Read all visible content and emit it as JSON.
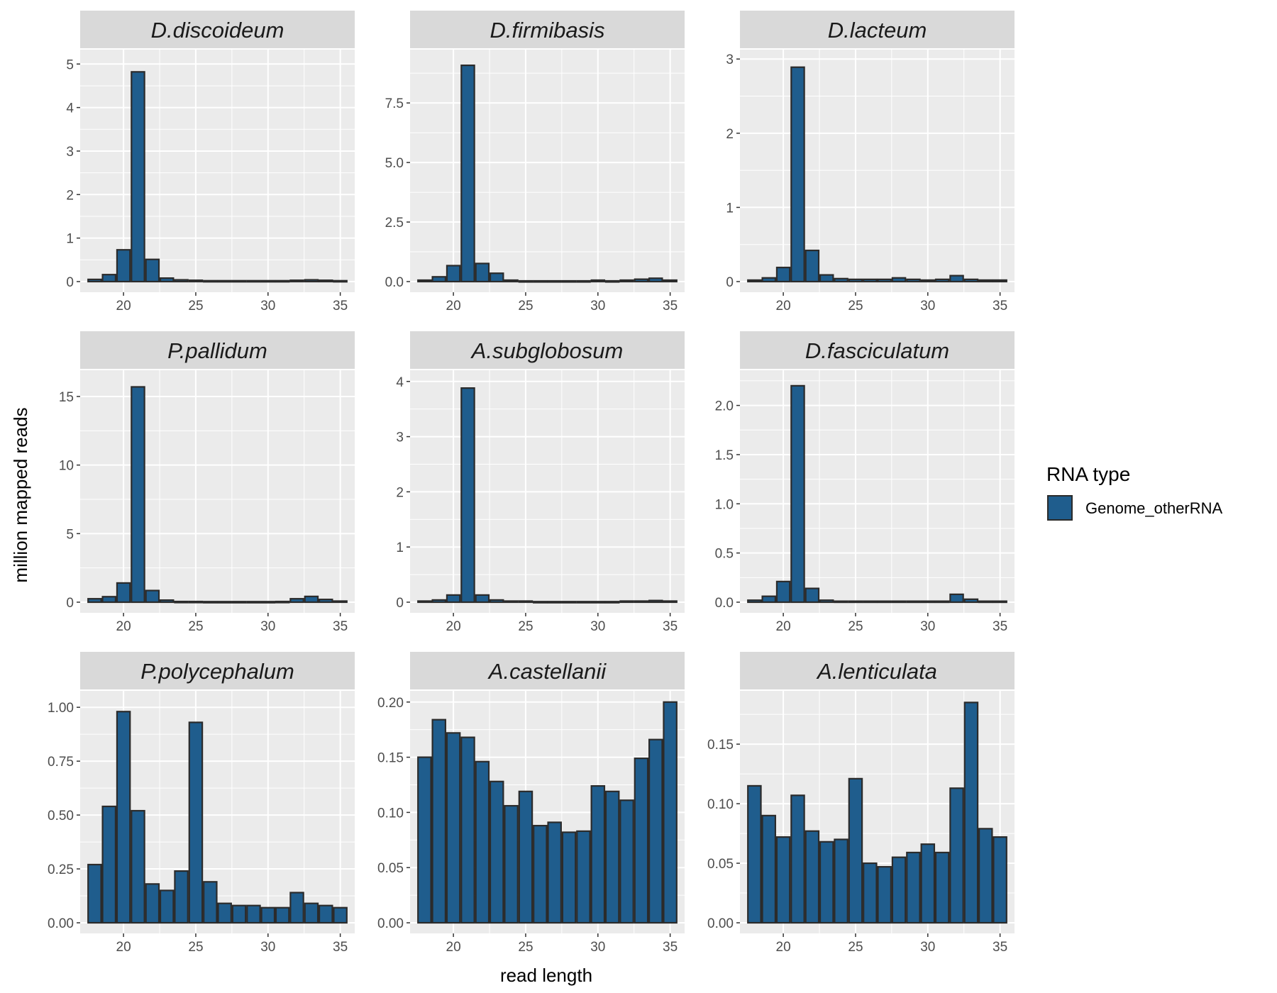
{
  "chart_data": {
    "type": "bar",
    "facet_layout": "3x3",
    "xlabel": "read length",
    "ylabel": "million mapped reads",
    "x": [
      18,
      19,
      20,
      21,
      22,
      23,
      24,
      25,
      26,
      27,
      28,
      29,
      30,
      31,
      32,
      33,
      34,
      35
    ],
    "x_ticks": [
      20,
      25,
      30,
      35
    ],
    "xlim": [
      17,
      36
    ],
    "grid": true,
    "legend": {
      "title": "RNA type",
      "position": "right",
      "entries": [
        {
          "label": "Genome_otherRNA",
          "color": "#1f5d8d"
        }
      ]
    },
    "colors": {
      "bar_fill": "#1f5d8d",
      "bar_outline": "#2b2b2b",
      "panel_bg": "#ebebeb",
      "strip_bg": "#d9d9d9",
      "grid": "#ffffff"
    },
    "panels": [
      {
        "title": "D.discoideum",
        "ylim": [
          0,
          5.2
        ],
        "y_ticks": [
          0,
          1,
          2,
          3,
          4,
          5
        ],
        "y_tick_labels": [
          "0",
          "1",
          "2",
          "3",
          "4",
          "5"
        ],
        "values": [
          0.05,
          0.16,
          0.73,
          4.82,
          0.51,
          0.08,
          0.04,
          0.03,
          0.02,
          0.02,
          0.02,
          0.02,
          0.02,
          0.02,
          0.03,
          0.04,
          0.03,
          0.02
        ]
      },
      {
        "title": "D.firmibasis",
        "ylim": [
          0,
          9.5
        ],
        "y_ticks": [
          0,
          2.5,
          5,
          7.5
        ],
        "y_tick_labels": [
          "0.0",
          "2.5",
          "5.0",
          "7.5"
        ],
        "values": [
          0.06,
          0.2,
          0.67,
          9.08,
          0.76,
          0.35,
          0.06,
          0.03,
          0.03,
          0.03,
          0.03,
          0.03,
          0.06,
          0.03,
          0.06,
          0.1,
          0.14,
          0.06
        ]
      },
      {
        "title": "D.lacteum",
        "ylim": [
          0,
          3.05
        ],
        "y_ticks": [
          0,
          1,
          2,
          3
        ],
        "y_tick_labels": [
          "0",
          "1",
          "2",
          "3"
        ],
        "values": [
          0.02,
          0.05,
          0.19,
          2.89,
          0.42,
          0.09,
          0.04,
          0.03,
          0.03,
          0.03,
          0.05,
          0.03,
          0.02,
          0.03,
          0.08,
          0.03,
          0.02,
          0.02
        ]
      },
      {
        "title": "P.pallidum",
        "ylim": [
          0,
          16.5
        ],
        "y_ticks": [
          0,
          5,
          10,
          15
        ],
        "y_tick_labels": [
          "0",
          "5",
          "10",
          "15"
        ],
        "values": [
          0.25,
          0.4,
          1.4,
          15.7,
          0.85,
          0.15,
          0.05,
          0.05,
          0.04,
          0.04,
          0.04,
          0.04,
          0.04,
          0.05,
          0.25,
          0.42,
          0.2,
          0.08
        ]
      },
      {
        "title": "A.subglobosum",
        "ylim": [
          0,
          4.1
        ],
        "y_ticks": [
          0,
          1,
          2,
          3,
          4
        ],
        "y_tick_labels": [
          "0",
          "1",
          "2",
          "3",
          "4"
        ],
        "values": [
          0.02,
          0.04,
          0.13,
          3.88,
          0.13,
          0.04,
          0.02,
          0.02,
          0.01,
          0.01,
          0.01,
          0.01,
          0.01,
          0.01,
          0.02,
          0.02,
          0.03,
          0.02
        ]
      },
      {
        "title": "D.fasciculatum",
        "ylim": [
          0,
          2.3
        ],
        "y_ticks": [
          0,
          0.5,
          1,
          1.5,
          2
        ],
        "y_tick_labels": [
          "0.0",
          "0.5",
          "1.0",
          "1.5",
          "2.0"
        ],
        "values": [
          0.02,
          0.06,
          0.21,
          2.2,
          0.14,
          0.02,
          0.01,
          0.01,
          0.01,
          0.01,
          0.01,
          0.01,
          0.01,
          0.01,
          0.08,
          0.03,
          0.01,
          0.01
        ]
      },
      {
        "title": "P.polycephalum",
        "ylim": [
          0,
          1.05
        ],
        "y_ticks": [
          0,
          0.25,
          0.5,
          0.75,
          1
        ],
        "y_tick_labels": [
          "0.00",
          "0.25",
          "0.50",
          "0.75",
          "1.00"
        ],
        "values": [
          0.27,
          0.54,
          0.98,
          0.52,
          0.18,
          0.15,
          0.24,
          0.93,
          0.19,
          0.09,
          0.08,
          0.08,
          0.07,
          0.07,
          0.14,
          0.09,
          0.08,
          0.07
        ]
      },
      {
        "title": "A.castellanii",
        "ylim": [
          0,
          0.205
        ],
        "y_ticks": [
          0,
          0.05,
          0.1,
          0.15,
          0.2
        ],
        "y_tick_labels": [
          "0.00",
          "0.05",
          "0.10",
          "0.15",
          "0.20"
        ],
        "values": [
          0.15,
          0.184,
          0.172,
          0.168,
          0.146,
          0.128,
          0.106,
          0.119,
          0.088,
          0.091,
          0.082,
          0.083,
          0.124,
          0.119,
          0.111,
          0.149,
          0.166,
          0.2
        ]
      },
      {
        "title": "A.lenticulata",
        "ylim": [
          0,
          0.19
        ],
        "y_ticks": [
          0,
          0.05,
          0.1,
          0.15
        ],
        "y_tick_labels": [
          "0.00",
          "0.05",
          "0.10",
          "0.15"
        ],
        "values": [
          0.115,
          0.09,
          0.072,
          0.107,
          0.077,
          0.068,
          0.07,
          0.121,
          0.05,
          0.047,
          0.055,
          0.059,
          0.066,
          0.059,
          0.113,
          0.185,
          0.079,
          0.072
        ]
      }
    ]
  }
}
